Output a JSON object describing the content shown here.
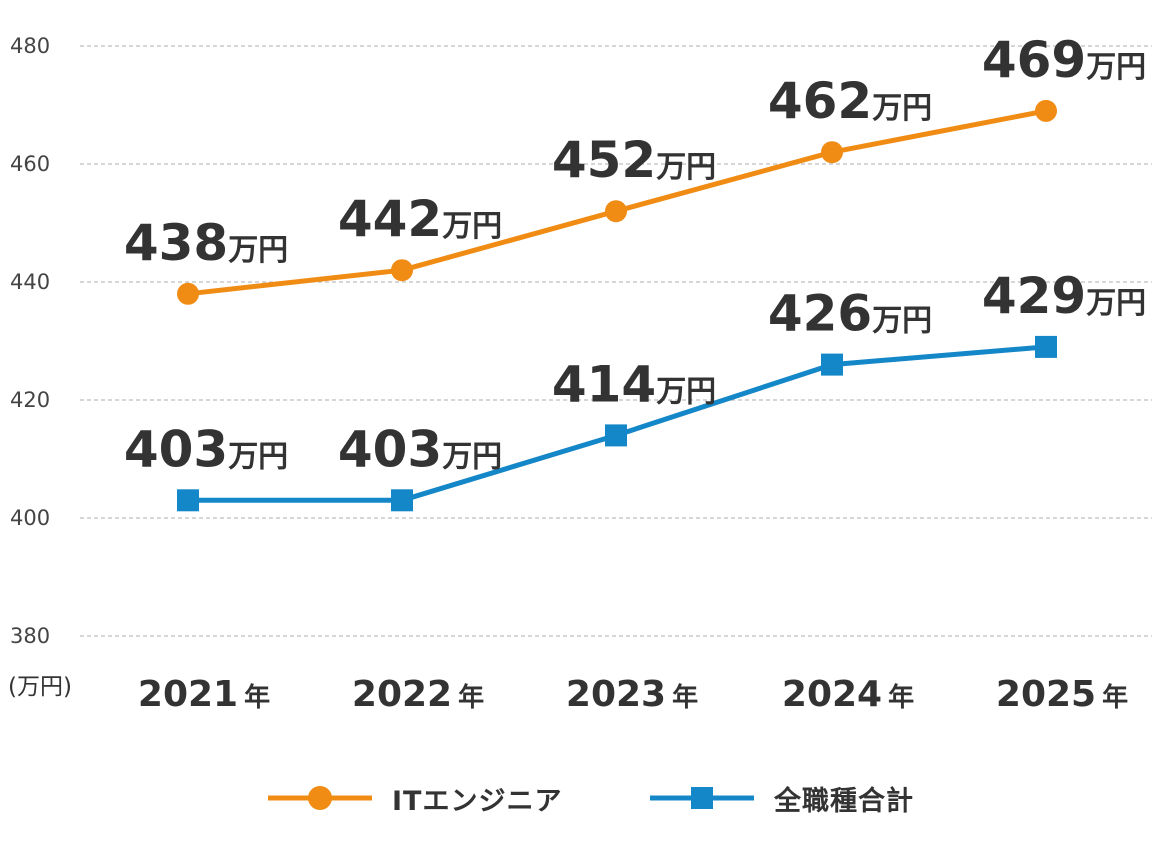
{
  "chart_data": {
    "type": "line",
    "categories": [
      "2021",
      "2022",
      "2023",
      "2024",
      "2025"
    ],
    "category_suffix": "年",
    "series": [
      {
        "name": "ITエンジニア",
        "values": [
          438,
          442,
          452,
          462,
          469
        ],
        "color": "#F08C14",
        "marker": "circle"
      },
      {
        "name": "全職種合計",
        "values": [
          403,
          403,
          414,
          426,
          429
        ],
        "color": "#1487C8",
        "marker": "square"
      }
    ],
    "data_label_unit": "万円",
    "ylabel": "(万円)",
    "ylim": [
      380,
      480
    ],
    "yticks": [
      "380",
      "400",
      "420",
      "440",
      "460",
      "480"
    ],
    "grid": "horizontal-dashed",
    "legend_position": "bottom"
  }
}
